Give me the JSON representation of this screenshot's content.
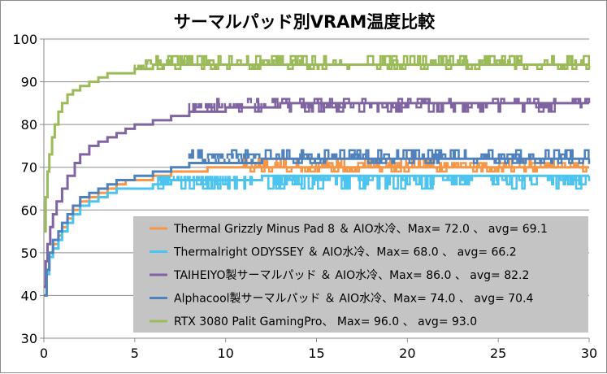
{
  "chart_data": {
    "type": "line",
    "title": "サーマルパッド別VRAM温度比較",
    "xlabel": "",
    "ylabel": "",
    "xlim": [
      0,
      30
    ],
    "ylim": [
      30,
      100
    ],
    "xticks": [
      0,
      5,
      10,
      15,
      20,
      25,
      30
    ],
    "yticks": [
      30,
      40,
      50,
      60,
      70,
      80,
      90,
      100
    ],
    "grid": "horizontal",
    "legend_position": "bottom-right",
    "series": [
      {
        "name": "Thermal Grizzly Minus Pad 8 ＆ AIO水冷、Max= 72.0 、 avg= 69.1",
        "color": "#f79646",
        "points": [
          [
            0,
            40
          ],
          [
            0.15,
            46
          ],
          [
            0.3,
            50
          ],
          [
            0.5,
            52
          ],
          [
            0.8,
            54
          ],
          [
            1.0,
            56
          ],
          [
            1.3,
            58
          ],
          [
            1.6,
            60
          ],
          [
            2.0,
            62
          ],
          [
            2.5,
            63
          ],
          [
            3.0,
            64
          ],
          [
            3.5,
            65
          ],
          [
            4.0,
            66
          ],
          [
            4.5,
            67
          ],
          [
            5.0,
            67
          ],
          [
            6.0,
            68
          ],
          [
            7.0,
            69
          ],
          [
            8.0,
            69
          ],
          [
            9.0,
            70
          ],
          [
            12,
            70
          ],
          [
            15,
            70
          ],
          [
            20,
            70
          ],
          [
            25,
            70
          ],
          [
            30,
            70
          ]
        ],
        "noise": {
          "start": 11,
          "end": 30,
          "values": [
            71,
            72,
            69
          ]
        }
      },
      {
        "name": "Thermalright ODYSSEY ＆ AIO水冷、Max= 68.0 、 avg= 66.2",
        "color": "#4bc4f0",
        "points": [
          [
            0,
            40
          ],
          [
            0.15,
            45
          ],
          [
            0.3,
            49
          ],
          [
            0.5,
            51
          ],
          [
            0.8,
            53
          ],
          [
            1.0,
            55
          ],
          [
            1.3,
            57
          ],
          [
            1.6,
            59
          ],
          [
            2.0,
            61
          ],
          [
            2.5,
            62
          ],
          [
            3.0,
            63
          ],
          [
            3.5,
            64
          ],
          [
            4.0,
            65
          ],
          [
            5.0,
            65
          ],
          [
            6.0,
            66
          ],
          [
            7.0,
            67
          ],
          [
            8.0,
            67
          ],
          [
            9.0,
            67
          ],
          [
            12,
            68
          ],
          [
            15,
            68
          ],
          [
            20,
            68
          ],
          [
            25,
            68
          ],
          [
            30,
            68
          ]
        ],
        "noise": {
          "start": 6,
          "end": 30,
          "values": [
            66,
            67,
            65
          ]
        }
      },
      {
        "name": "TAIHEIYO製サーマルパッド ＆ AIO水冷、Max= 86.0 、 avg= 82.2",
        "color": "#8064a2",
        "points": [
          [
            0,
            42
          ],
          [
            0.1,
            48
          ],
          [
            0.2,
            52
          ],
          [
            0.35,
            56
          ],
          [
            0.5,
            59
          ],
          [
            0.7,
            62
          ],
          [
            1.0,
            65
          ],
          [
            1.3,
            68
          ],
          [
            1.7,
            71
          ],
          [
            2.0,
            73
          ],
          [
            2.5,
            75
          ],
          [
            3.0,
            76
          ],
          [
            3.5,
            77
          ],
          [
            4.0,
            78
          ],
          [
            4.5,
            79
          ],
          [
            5.0,
            80
          ],
          [
            6.0,
            81
          ],
          [
            7.0,
            82
          ],
          [
            8.0,
            83
          ],
          [
            10,
            84
          ],
          [
            13,
            85
          ],
          [
            15,
            85
          ],
          [
            20,
            85
          ],
          [
            25,
            85
          ],
          [
            30,
            85
          ]
        ],
        "noise": {
          "start": 8,
          "end": 30,
          "values": [
            84,
            86,
            83
          ]
        }
      },
      {
        "name": "Alphacool製サーマルパッド ＆ AIO水冷、Max= 74.0 、 avg= 70.4",
        "color": "#4f81bd",
        "points": [
          [
            0,
            40
          ],
          [
            0.15,
            46
          ],
          [
            0.3,
            50
          ],
          [
            0.5,
            53
          ],
          [
            0.8,
            55
          ],
          [
            1.0,
            57
          ],
          [
            1.3,
            59
          ],
          [
            1.6,
            61
          ],
          [
            2.0,
            63
          ],
          [
            2.5,
            64
          ],
          [
            3.0,
            65
          ],
          [
            3.5,
            66
          ],
          [
            4.0,
            67
          ],
          [
            5.0,
            68
          ],
          [
            6.0,
            69
          ],
          [
            7.0,
            70
          ],
          [
            8.0,
            71
          ],
          [
            9.0,
            71
          ],
          [
            12,
            72
          ],
          [
            15,
            72
          ],
          [
            20,
            72
          ],
          [
            25,
            72
          ],
          [
            30,
            72
          ]
        ],
        "noise": {
          "start": 8,
          "end": 30,
          "values": [
            73,
            74,
            71
          ]
        }
      },
      {
        "name": "RTX 3080 Palit GamingPro、 Max= 96.0 、 avg= 93.0",
        "color": "#9bbb59",
        "points": [
          [
            0,
            55
          ],
          [
            0.1,
            63
          ],
          [
            0.2,
            69
          ],
          [
            0.3,
            73
          ],
          [
            0.45,
            77
          ],
          [
            0.6,
            80
          ],
          [
            0.8,
            83
          ],
          [
            1.0,
            85
          ],
          [
            1.3,
            87
          ],
          [
            1.6,
            88
          ],
          [
            2.0,
            89
          ],
          [
            2.5,
            90
          ],
          [
            3.0,
            91
          ],
          [
            3.5,
            92
          ],
          [
            4.0,
            92
          ],
          [
            5.0,
            93
          ],
          [
            6.0,
            94
          ],
          [
            7.0,
            94
          ],
          [
            10,
            94
          ],
          [
            15,
            94
          ],
          [
            20,
            94
          ],
          [
            25,
            94
          ],
          [
            30,
            94
          ]
        ],
        "noise": {
          "start": 5,
          "end": 30,
          "values": [
            95,
            96,
            93
          ]
        }
      }
    ]
  }
}
